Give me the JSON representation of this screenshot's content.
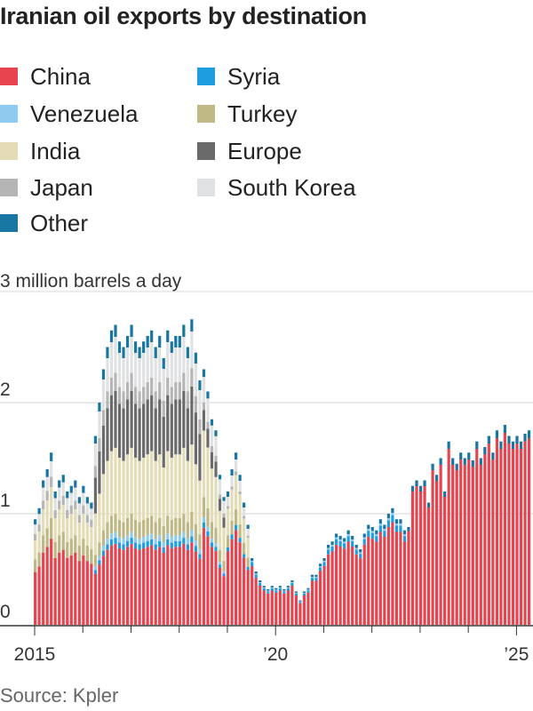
{
  "title": "Iranian oil exports by destination",
  "source": "Source: Kpler",
  "legend": [
    {
      "label": "China",
      "color": "#e8444f"
    },
    {
      "label": "Syria",
      "color": "#1e9ee0"
    },
    {
      "label": "Venezuela",
      "color": "#8ecbee"
    },
    {
      "label": "Turkey",
      "color": "#bfb784"
    },
    {
      "label": "India",
      "color": "#e3dcb7"
    },
    {
      "label": "Europe",
      "color": "#6a6a6a"
    },
    {
      "label": "Japan",
      "color": "#b5b5b5"
    },
    {
      "label": "South Korea",
      "color": "#e0e1e3"
    },
    {
      "label": "Other",
      "color": "#1776a2"
    }
  ],
  "chart_data": {
    "type": "bar",
    "stacked": true,
    "unit_label": "3 million barrels a day",
    "ylim": [
      0,
      3
    ],
    "y_ticks": [
      {
        "value": 0,
        "label": "0"
      },
      {
        "value": 1,
        "label": "1"
      },
      {
        "value": 2,
        "label": "2"
      },
      {
        "value": 3,
        "label": ""
      }
    ],
    "x_ticks": [
      {
        "year": 2015,
        "label": "2015"
      },
      {
        "year": 2020,
        "label": "’20"
      },
      {
        "year": 2025,
        "label": "’25"
      }
    ],
    "start": "2015-01",
    "end": "2025-04",
    "series_order": [
      "China",
      "Syria",
      "Venezuela",
      "Turkey",
      "India",
      "Europe",
      "Japan",
      "South Korea",
      "Other"
    ],
    "totals_by_year": {
      "2015": [
        0.95,
        1.05,
        1.3,
        1.4,
        1.55,
        1.2,
        1.3,
        1.35,
        1.2,
        1.25,
        1.3,
        1.15
      ],
      "2016": [
        1.25,
        1.15,
        1.1,
        1.7,
        2.0,
        2.3,
        2.5,
        2.65,
        2.7,
        2.55,
        2.5,
        2.6
      ],
      "2017": [
        2.7,
        2.55,
        2.5,
        2.55,
        2.6,
        2.65,
        2.5,
        2.6,
        2.4,
        2.65,
        2.55,
        2.6
      ],
      "2018": [
        2.6,
        2.7,
        2.5,
        2.75,
        2.45,
        2.2,
        2.3,
        2.1,
        1.85,
        1.75,
        1.35,
        1.15
      ],
      "2019": [
        1.2,
        1.4,
        1.55,
        1.35,
        1.1,
        0.9,
        0.6,
        0.48,
        0.4,
        0.35,
        0.32,
        0.35
      ],
      "2020": [
        0.33,
        0.35,
        0.32,
        0.35,
        0.4,
        0.3,
        0.22,
        0.3,
        0.33,
        0.45,
        0.45,
        0.55
      ],
      "2021": [
        0.6,
        0.72,
        0.75,
        0.82,
        0.8,
        0.78,
        0.85,
        0.8,
        0.72,
        0.68,
        0.82,
        0.9
      ],
      "2022": [
        0.88,
        0.85,
        0.95,
        0.9,
        1.0,
        1.05,
        0.95,
        0.95,
        0.85,
        0.88,
        1.25,
        1.3
      ],
      "2023": [
        1.25,
        1.3,
        1.1,
        1.45,
        1.35,
        1.5,
        1.2,
        1.65,
        1.5,
        1.45,
        1.55,
        1.5
      ],
      "2024": [
        1.55,
        1.48,
        1.65,
        1.5,
        1.6,
        1.7,
        1.55,
        1.75,
        1.65,
        1.8,
        1.7,
        1.65
      ],
      "2025": [
        1.7,
        1.65,
        1.72,
        1.75
      ]
    }
  }
}
